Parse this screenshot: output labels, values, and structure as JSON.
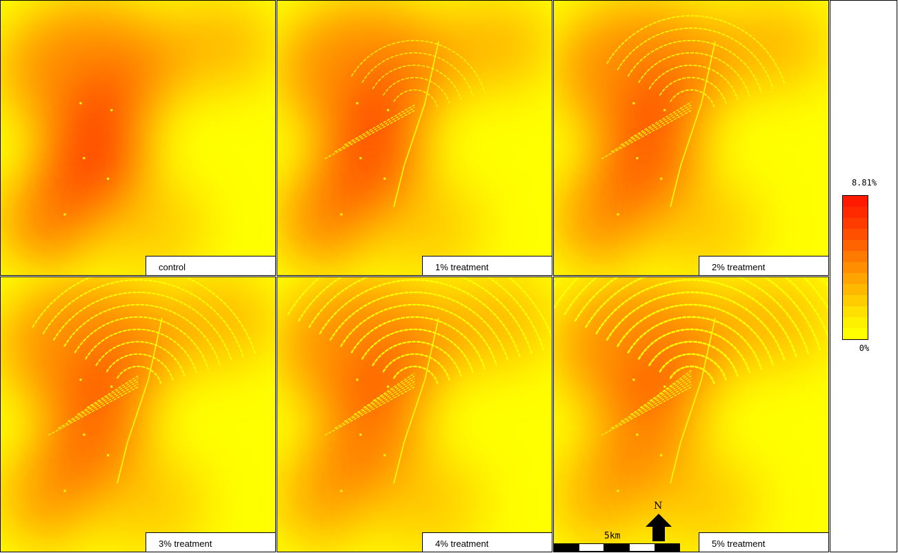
{
  "panels": [
    {
      "label": "control",
      "treatment_level": 0
    },
    {
      "label": "1% treatment",
      "treatment_level": 1
    },
    {
      "label": "2% treatment",
      "treatment_level": 2
    },
    {
      "label": "3% treatment",
      "treatment_level": 3
    },
    {
      "label": "4% treatment",
      "treatment_level": 4
    },
    {
      "label": "5% treatment",
      "treatment_level": 5
    }
  ],
  "legend": {
    "max_label": "8.81%",
    "min_label": "0%",
    "colors": [
      "#ff1a00",
      "#ff2a00",
      "#ff3c00",
      "#ff5000",
      "#ff6400",
      "#ff7a00",
      "#ff8e00",
      "#ffa400",
      "#ffb800",
      "#ffcc00",
      "#ffe000",
      "#fff000",
      "#ffff00"
    ]
  },
  "scale_bar": {
    "label": "5km"
  },
  "north_arrow": {
    "label": "N"
  },
  "colors": {
    "hot": "#ff3000",
    "mid": "#ff8c00",
    "cool": "#ffff00"
  }
}
